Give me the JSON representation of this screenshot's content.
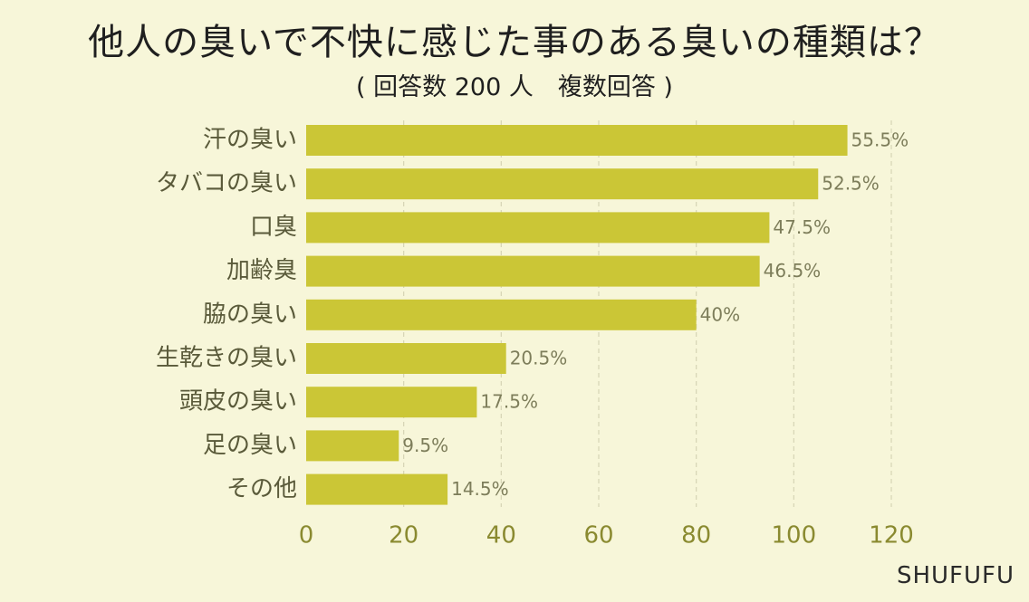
{
  "title": "他人の臭いで不快に感じた事のある臭いの種類は？",
  "subtitle": "( 回答数 200 人　複数回答 )",
  "source": "SHUFUFU",
  "colors": {
    "background": "#f7f6d9",
    "bar": "#cbc636",
    "grid": "#d6d4b5",
    "tick_text": "#8a8a30",
    "category_text": "#5a5a3a",
    "value_text": "#7d7d5a"
  },
  "chart_data": {
    "type": "bar",
    "orientation": "horizontal",
    "title": "他人の臭いで不快に感じた事のある臭いの種類は？",
    "subtitle": "( 回答数 200 人　複数回答 )",
    "categories": [
      "汗の臭い",
      "タバコの臭い",
      "口臭",
      "加齢臭",
      "脇の臭い",
      "生乾きの臭い",
      "頭皮の臭い",
      "足の臭い",
      "その他"
    ],
    "values": [
      111,
      105,
      95,
      93,
      80,
      41,
      35,
      19,
      29
    ],
    "data_labels": [
      "55.5%",
      "52.5%",
      "47.5%",
      "46.5%",
      "40%",
      "20.5%",
      "17.5%",
      "9.5%",
      "14.5%"
    ],
    "xlim": [
      0,
      120
    ],
    "xticks": [
      "0",
      "20",
      "40",
      "60",
      "80",
      "100",
      "120"
    ],
    "grid": "vertical dashed",
    "legend": "none"
  }
}
